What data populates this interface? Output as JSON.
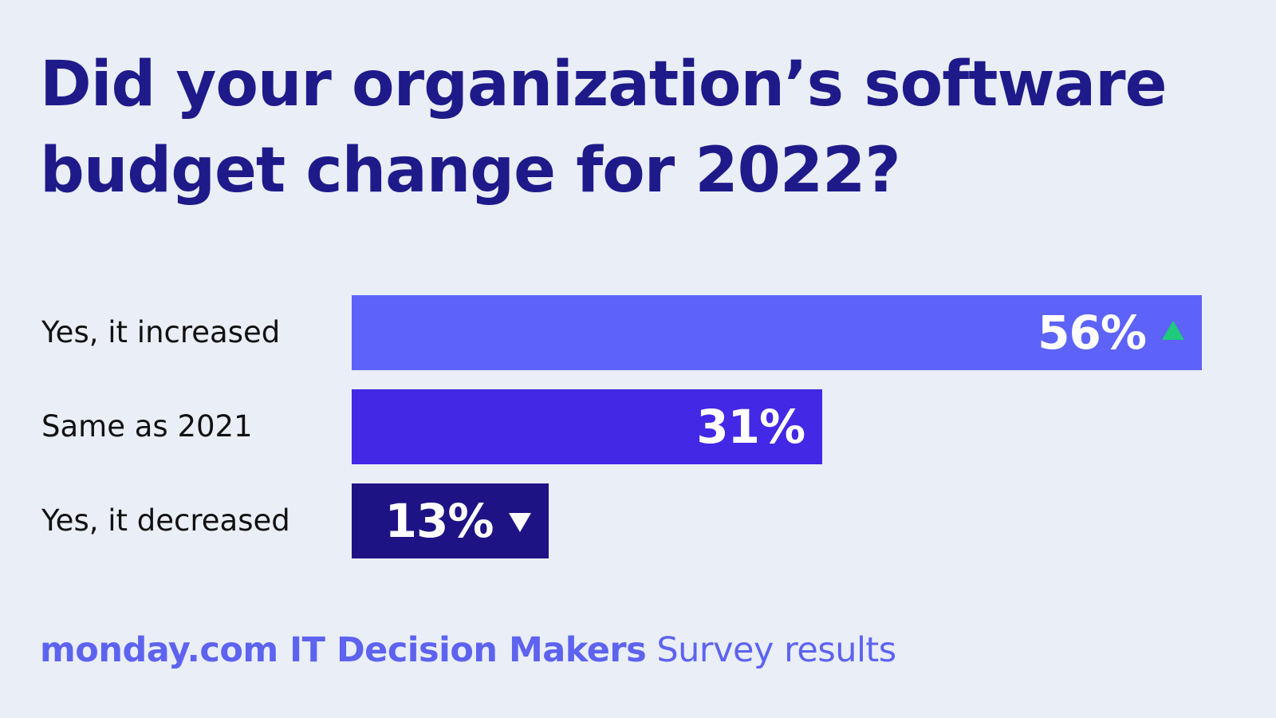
{
  "chart_data": {
    "type": "bar",
    "orientation": "horizontal",
    "title": "Did your organization’s software budget change for 2022?",
    "categories": [
      "Yes, it increased",
      "Same as 2021",
      "Yes, it decreased"
    ],
    "values": [
      56,
      31,
      13
    ],
    "value_labels": [
      "56%",
      "31%",
      "13%"
    ],
    "indicators": [
      "up",
      "none",
      "down"
    ],
    "colors": [
      "#5d63f8",
      "#4328e6",
      "#1e1385"
    ],
    "indicator_colors": {
      "up": "#1fca7a",
      "down": "#ffffff"
    },
    "xlabel": "",
    "ylabel": "",
    "xlim": [
      0,
      56
    ],
    "grid": false,
    "legend": "none"
  },
  "footer": {
    "brand": "monday.com IT Decision Makers",
    "suffix": " Survey results"
  }
}
